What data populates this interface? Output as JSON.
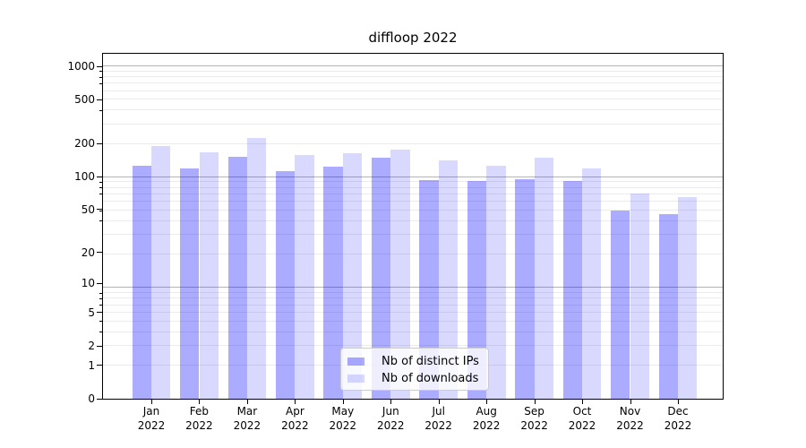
{
  "title": "diffloop 2022",
  "chart_data": {
    "type": "bar",
    "title": "diffloop 2022",
    "categories": [
      "Jan",
      "Feb",
      "Mar",
      "Apr",
      "May",
      "Jun",
      "Jul",
      "Aug",
      "Sep",
      "Oct",
      "Nov",
      "Dec"
    ],
    "year_label": "2022",
    "series": [
      {
        "name": "Nb of distinct IPs",
        "color": "rgba(0,0,255,0.33)",
        "values": [
          126,
          119,
          152,
          113,
          124,
          150,
          94,
          91,
          95,
          92,
          49,
          45
        ]
      },
      {
        "name": "Nb of downloads",
        "color": "rgba(0,0,255,0.15)",
        "values": [
          189,
          166,
          224,
          159,
          165,
          178,
          142,
          126,
          148,
          119,
          70,
          65
        ]
      }
    ],
    "yticks": [
      0,
      1,
      2,
      5,
      10,
      20,
      50,
      100,
      200,
      500,
      1000
    ],
    "xlabel": "",
    "ylabel": "",
    "y_scale": "log(x+1)",
    "ylim": [
      0,
      1300
    ],
    "grid": "horizontal, minor light + major dark at decades",
    "legend_position": "lower center inside plot"
  }
}
